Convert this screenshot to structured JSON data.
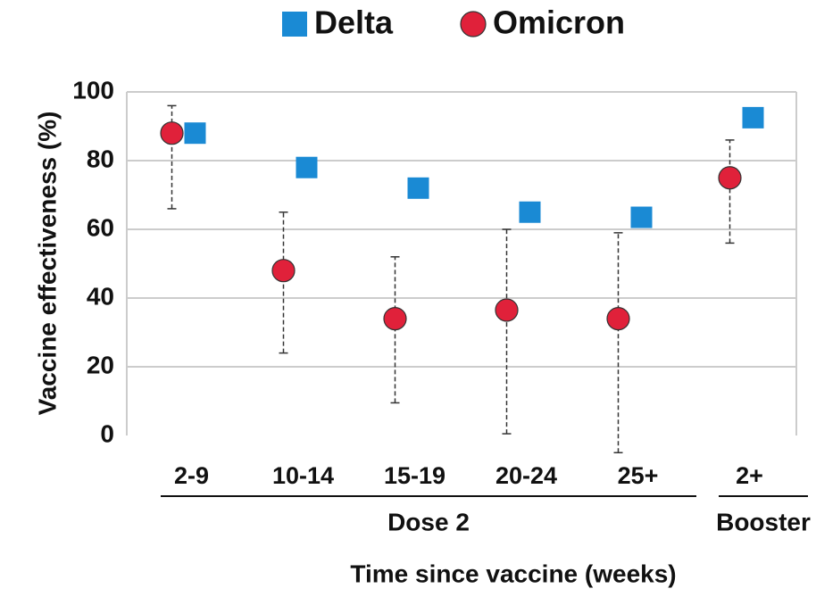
{
  "chart_data": {
    "type": "scatter",
    "ylabel": "Vaccine effectiveness (%)",
    "xlabel": "Time since vaccine (weeks)",
    "categories": [
      "2-9",
      "10-14",
      "15-19",
      "20-24",
      "25+",
      "2+"
    ],
    "category_groups": [
      "Dose 2",
      "Dose 2",
      "Dose 2",
      "Dose 2",
      "Dose 2",
      "Booster"
    ],
    "series": [
      {
        "name": "Delta",
        "color": "#1a8ad4",
        "marker": "square",
        "values": [
          88,
          78,
          72,
          65,
          63.5,
          92.5
        ]
      },
      {
        "name": "Omicron",
        "color": "#e0213a",
        "marker": "circle",
        "values": [
          88,
          48,
          34,
          36.5,
          34,
          75
        ],
        "lower": [
          66,
          24,
          9.5,
          0.5,
          -5,
          56
        ],
        "upper": [
          96,
          65,
          52,
          60,
          59,
          86
        ]
      }
    ],
    "ylim": [
      0,
      100
    ],
    "yticks": [
      0,
      20,
      40,
      60,
      80,
      100
    ],
    "grid": true,
    "legend": "top"
  }
}
